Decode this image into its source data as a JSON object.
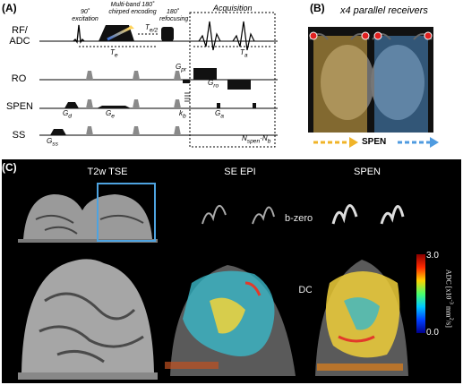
{
  "panel_a": {
    "label": "(A)",
    "rows": [
      "RF/ ADC",
      "RO",
      "SPEN",
      "SS"
    ],
    "notes": {
      "excitation": "90˚ excitation",
      "encoding": "Multi-band 180˚ chirped encoding",
      "refocusing": "180˚ refocusing",
      "acquisition": "Acquisition"
    },
    "symbols": {
      "te": "T",
      "te_sub": "e",
      "te_half": "T",
      "te_half_sub": "e/2",
      "ta": "T",
      "ta_sub": "a",
      "gpr": "G",
      "gpr_sub": "pr",
      "gro": "G",
      "gro_sub": "ro",
      "gd": "G",
      "gd_sub": "d",
      "ge": "G",
      "ge_sub": "e",
      "kb": "k",
      "kb_sub": "b",
      "ga": "G",
      "ga_sub": "a",
      "gss": "G",
      "gss_sub": "ss",
      "nspen": "N",
      "nspen_sub": "spen",
      "nb": "N",
      "nb_sub": "b"
    }
  },
  "panel_b": {
    "label": "(B)",
    "title": "x4 parallel receivers",
    "axis_label": "SPEN"
  },
  "panel_c": {
    "label": "(C)",
    "columns": [
      "T2w TSE",
      "SE EPI",
      "SPEN"
    ],
    "row_labels": [
      "b-zero",
      "ADC"
    ],
    "colorbar": {
      "max": "3.0",
      "min": "0.0",
      "label_pre": "ADC [x10",
      "label_sup": "-3",
      "label_mid": " mm",
      "label_sup2": "2",
      "label_post": "/s]"
    },
    "colors": {
      "highlight_box": "#4ea3e0"
    }
  }
}
